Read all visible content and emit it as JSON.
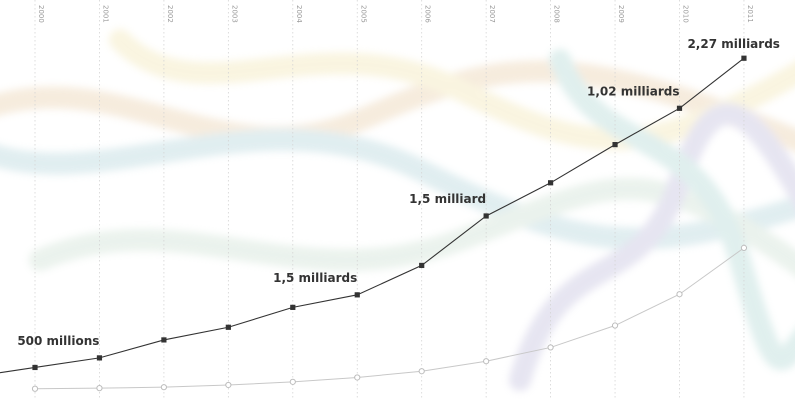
{
  "chart_data": {
    "type": "line",
    "x": [
      "2000",
      "2001",
      "2002",
      "2003",
      "2004",
      "2005",
      "2006",
      "2007",
      "2008",
      "2009",
      "2010",
      "2011"
    ],
    "series": [
      {
        "values": [
          360,
          513,
          800,
          1002,
          1320,
          1520,
          1990,
          2780,
          3310,
          3920,
          4500,
          5300
        ],
        "color": "#333333",
        "marker": "square",
        "style": "solid"
      },
      {
        "values": [
          20,
          30,
          45,
          80,
          130,
          200,
          300,
          460,
          680,
          1030,
          1530,
          2270
        ],
        "color": "#c8c8c8",
        "marker": "hollow-circle",
        "style": "solid"
      }
    ],
    "annotations": [
      {
        "text": "500 millions",
        "x": "2001",
        "series": 0
      },
      {
        "text": "1,5 milliards",
        "x": "2005",
        "series": 0
      },
      {
        "text": "1,5 milliard",
        "x": "2007",
        "series": 0
      },
      {
        "text": "1,02 milliards",
        "x": "2010",
        "series": 0
      },
      {
        "text": "2,27 milliards",
        "x": "2011",
        "series": 0
      }
    ],
    "title": "",
    "xlabel": "",
    "ylabel": "",
    "grid": "vertical-dotted",
    "legend": "none"
  }
}
